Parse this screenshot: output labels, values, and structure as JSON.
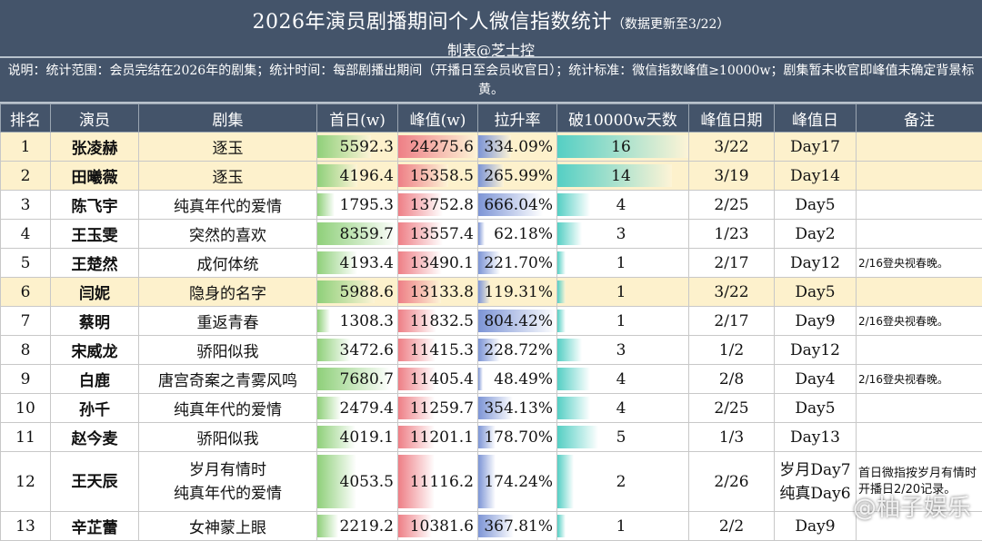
{
  "header": {
    "title": "2026年演员剧播期间个人微信指数统计",
    "update": "（数据更新至3/22）",
    "author": "制表@芝士控"
  },
  "description": "说明：统计范围：会员完结在2026年的剧集；统计时间：每部剧播出期间（开播日至会员收官日）；统计标准：微信指数峰值≥10000w；剧集暂未收官即峰值未确定背景标黄。",
  "columns": [
    "排名",
    "演员",
    "剧集",
    "首日(w)",
    "峰值(w)",
    "拉升率",
    "破10000w天数",
    "峰值日期",
    "峰值日",
    "备注"
  ],
  "colors": {
    "header_bg": "#44546a",
    "highlight": "#fdf1cc",
    "first_day_bar": "#8fd07a",
    "peak_bar": "#ee7f86",
    "rise_bar": "#7d95d6",
    "days_bar": "#55cfc4"
  },
  "rows": [
    {
      "rank": "1",
      "actor": "张凌赫",
      "drama": "逐玉",
      "first": "5592.3",
      "peak": "24275.6",
      "rise": "334.09%",
      "days": "16",
      "peak_date": "3/22",
      "peak_day": "Day17",
      "note": "",
      "highlight": true
    },
    {
      "rank": "2",
      "actor": "田曦薇",
      "drama": "逐玉",
      "first": "4196.4",
      "peak": "15358.5",
      "rise": "265.99%",
      "days": "14",
      "peak_date": "3/19",
      "peak_day": "Day14",
      "note": "",
      "highlight": true
    },
    {
      "rank": "3",
      "actor": "陈飞宇",
      "drama": "纯真年代的爱情",
      "first": "1795.3",
      "peak": "13752.8",
      "rise": "666.04%",
      "days": "4",
      "peak_date": "2/25",
      "peak_day": "Day5",
      "note": "",
      "highlight": false
    },
    {
      "rank": "4",
      "actor": "王玉雯",
      "drama": "突然的喜欢",
      "first": "8359.7",
      "peak": "13557.4",
      "rise": "62.18%",
      "days": "3",
      "peak_date": "1/23",
      "peak_day": "Day2",
      "note": "",
      "highlight": false
    },
    {
      "rank": "5",
      "actor": "王楚然",
      "drama": "成何体统",
      "first": "4193.4",
      "peak": "13490.1",
      "rise": "221.70%",
      "days": "1",
      "peak_date": "2/17",
      "peak_day": "Day12",
      "note": "2/16登央视春晚。",
      "highlight": false
    },
    {
      "rank": "6",
      "actor": "闫妮",
      "drama": "隐身的名字",
      "first": "5988.6",
      "peak": "13133.8",
      "rise": "119.31%",
      "days": "1",
      "peak_date": "3/22",
      "peak_day": "Day5",
      "note": "",
      "highlight": true
    },
    {
      "rank": "7",
      "actor": "蔡明",
      "drama": "重返青春",
      "first": "1308.3",
      "peak": "11832.5",
      "rise": "804.42%",
      "days": "1",
      "peak_date": "2/17",
      "peak_day": "Day9",
      "note": "2/16登央视春晚。",
      "highlight": false
    },
    {
      "rank": "8",
      "actor": "宋威龙",
      "drama": "骄阳似我",
      "first": "3472.6",
      "peak": "11415.3",
      "rise": "228.72%",
      "days": "3",
      "peak_date": "1/2",
      "peak_day": "Day12",
      "note": "",
      "highlight": false
    },
    {
      "rank": "9",
      "actor": "白鹿",
      "drama": "唐宫奇案之青雾风鸣",
      "first": "7680.7",
      "peak": "11405.4",
      "rise": "48.49%",
      "days": "4",
      "peak_date": "2/8",
      "peak_day": "Day4",
      "note": "2/16登央视春晚。",
      "highlight": false
    },
    {
      "rank": "10",
      "actor": "孙千",
      "drama": "纯真年代的爱情",
      "first": "2479.4",
      "peak": "11259.7",
      "rise": "354.13%",
      "days": "4",
      "peak_date": "2/25",
      "peak_day": "Day5",
      "note": "",
      "highlight": false
    },
    {
      "rank": "11",
      "actor": "赵今麦",
      "drama": "骄阳似我",
      "first": "4019.1",
      "peak": "11201.1",
      "rise": "178.70%",
      "days": "5",
      "peak_date": "1/3",
      "peak_day": "Day13",
      "note": "",
      "highlight": false
    },
    {
      "rank": "12",
      "actor": "王天辰",
      "drama": "岁月有情时\n纯真年代的爱情",
      "first": "4053.5",
      "peak": "11116.2",
      "rise": "174.24%",
      "days": "2",
      "peak_date": "2/26",
      "peak_day": "岁月Day7\n纯真Day6",
      "note": "首日微指按岁月有情时开播日2/20记录。",
      "highlight": false
    },
    {
      "rank": "13",
      "actor": "辛芷蕾",
      "drama": "女神蒙上眼",
      "first": "2219.2",
      "peak": "10381.6",
      "rise": "367.81%",
      "days": "1",
      "peak_date": "2/2",
      "peak_day": "Day9",
      "note": "",
      "highlight": false
    }
  ],
  "watermark": "@柚子娱乐"
}
